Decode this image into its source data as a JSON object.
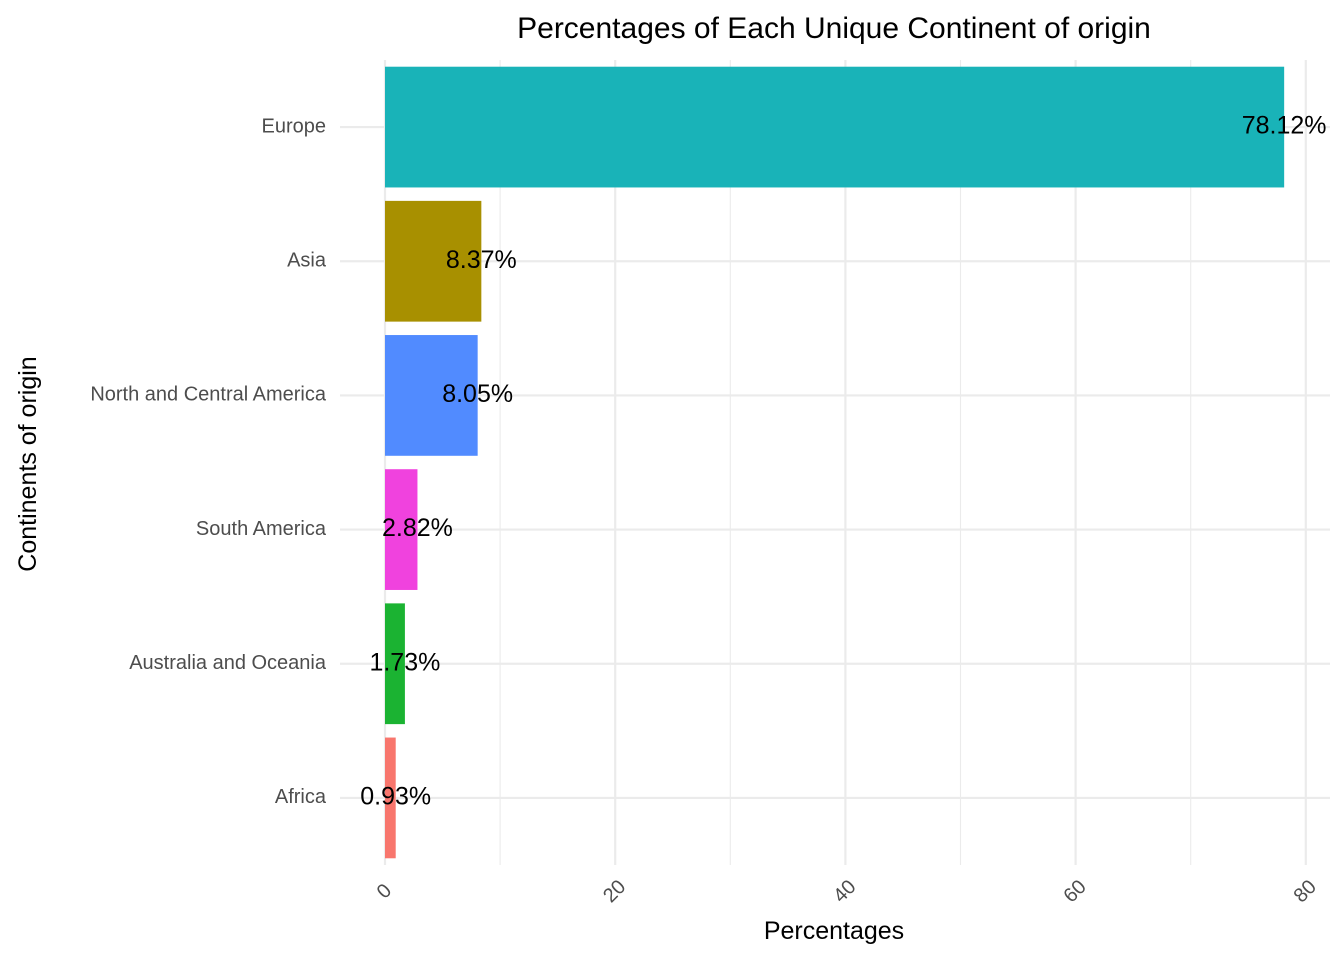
{
  "chart_data": {
    "type": "bar",
    "orientation": "horizontal",
    "title": "Percentages of Each Unique Continent of origin",
    "xlabel": "Percentages",
    "ylabel": "Continents of origin",
    "categories": [
      "Africa",
      "Australia and Oceania",
      "South America",
      "North and Central America",
      "Asia",
      "Europe"
    ],
    "values": [
      0.93,
      1.73,
      2.82,
      8.05,
      8.37,
      78.12
    ],
    "data_labels": [
      "0.93%",
      "1.73%",
      "2.82%",
      "8.05%",
      "8.37%",
      "78.12%"
    ],
    "colors": [
      "#F8766D",
      "#1BB332",
      "#F042DE",
      "#518BFF",
      "#A89000",
      "#19B3B8"
    ],
    "xlim": [
      0,
      80
    ],
    "xticks": [
      0,
      20,
      40,
      60,
      80
    ],
    "xtick_labels": [
      "0",
      "20",
      "40",
      "60",
      "80"
    ],
    "grid": true,
    "legend": "none"
  }
}
